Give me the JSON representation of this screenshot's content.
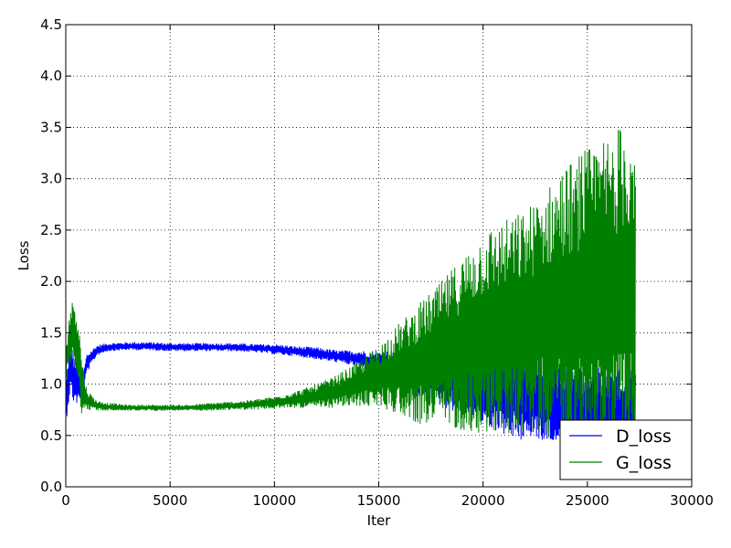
{
  "chart_data": {
    "type": "line",
    "title": "",
    "xlabel": "Iter",
    "ylabel": "Loss",
    "xlim": [
      0,
      30000
    ],
    "ylim": [
      0,
      4.5
    ],
    "xticks": [
      0,
      5000,
      10000,
      15000,
      20000,
      25000,
      30000
    ],
    "xtick_labels": [
      "0",
      "5000",
      "10000",
      "15000",
      "20000",
      "25000",
      "30000"
    ],
    "yticks": [
      0,
      0.5,
      1.0,
      1.5,
      2.0,
      2.5,
      3.0,
      3.5,
      4.0,
      4.5
    ],
    "ytick_labels": [
      "0.0",
      "0.5",
      "1.0",
      "1.5",
      "2.0",
      "2.5",
      "3.0",
      "3.5",
      "4.0",
      "4.5"
    ],
    "grid": true,
    "legend_position": "bottom-right",
    "series": [
      {
        "name": "D_loss",
        "color": "#0000ff",
        "x": [
          0,
          200,
          400,
          600,
          800,
          1000,
          1500,
          2000,
          3000,
          4000,
          5000,
          6000,
          7000,
          8000,
          9000,
          10000,
          11000,
          12000,
          13000,
          14000,
          15000,
          16000,
          17000,
          18000,
          19000,
          20000,
          21000,
          22000,
          23000,
          24000,
          25000,
          26000,
          27000,
          27300
        ],
        "y": [
          0.8,
          1.2,
          1.05,
          1.0,
          0.95,
          1.2,
          1.33,
          1.36,
          1.37,
          1.37,
          1.36,
          1.36,
          1.36,
          1.36,
          1.35,
          1.34,
          1.32,
          1.3,
          1.27,
          1.25,
          1.2,
          1.15,
          1.12,
          1.08,
          1.05,
          1.0,
          0.95,
          0.9,
          0.82,
          0.78,
          0.72,
          0.7,
          0.68,
          0.7
        ],
        "spread": [
          0.2,
          0.3,
          0.25,
          0.2,
          0.12,
          0.1,
          0.05,
          0.04,
          0.04,
          0.04,
          0.04,
          0.04,
          0.04,
          0.04,
          0.04,
          0.05,
          0.05,
          0.06,
          0.06,
          0.08,
          0.12,
          0.2,
          0.25,
          0.3,
          0.35,
          0.4,
          0.45,
          0.5,
          0.45,
          0.45,
          0.45,
          0.45,
          0.45,
          0.45
        ]
      },
      {
        "name": "G_loss",
        "color": "#008000",
        "x": [
          0,
          200,
          400,
          600,
          800,
          1000,
          1500,
          2000,
          3000,
          4000,
          5000,
          6000,
          7000,
          8000,
          9000,
          10000,
          11000,
          12000,
          13000,
          14000,
          15000,
          16000,
          17000,
          18000,
          19000,
          20000,
          21000,
          22000,
          23000,
          24000,
          25000,
          26000,
          27000,
          27300
        ],
        "y": [
          1.2,
          1.45,
          1.55,
          1.3,
          0.95,
          0.85,
          0.79,
          0.78,
          0.77,
          0.77,
          0.77,
          0.77,
          0.78,
          0.79,
          0.8,
          0.82,
          0.85,
          0.88,
          0.93,
          1.0,
          1.08,
          1.15,
          1.2,
          1.3,
          1.4,
          1.5,
          1.55,
          1.6,
          1.7,
          1.75,
          1.8,
          1.85,
          1.9,
          1.9
        ],
        "spread": [
          0.2,
          0.3,
          0.3,
          0.35,
          0.3,
          0.1,
          0.05,
          0.04,
          0.03,
          0.03,
          0.03,
          0.03,
          0.04,
          0.04,
          0.05,
          0.06,
          0.08,
          0.12,
          0.16,
          0.22,
          0.3,
          0.45,
          0.6,
          0.7,
          0.85,
          1.0,
          1.05,
          1.1,
          1.2,
          1.4,
          1.5,
          1.6,
          1.7,
          1.7
        ]
      }
    ]
  }
}
